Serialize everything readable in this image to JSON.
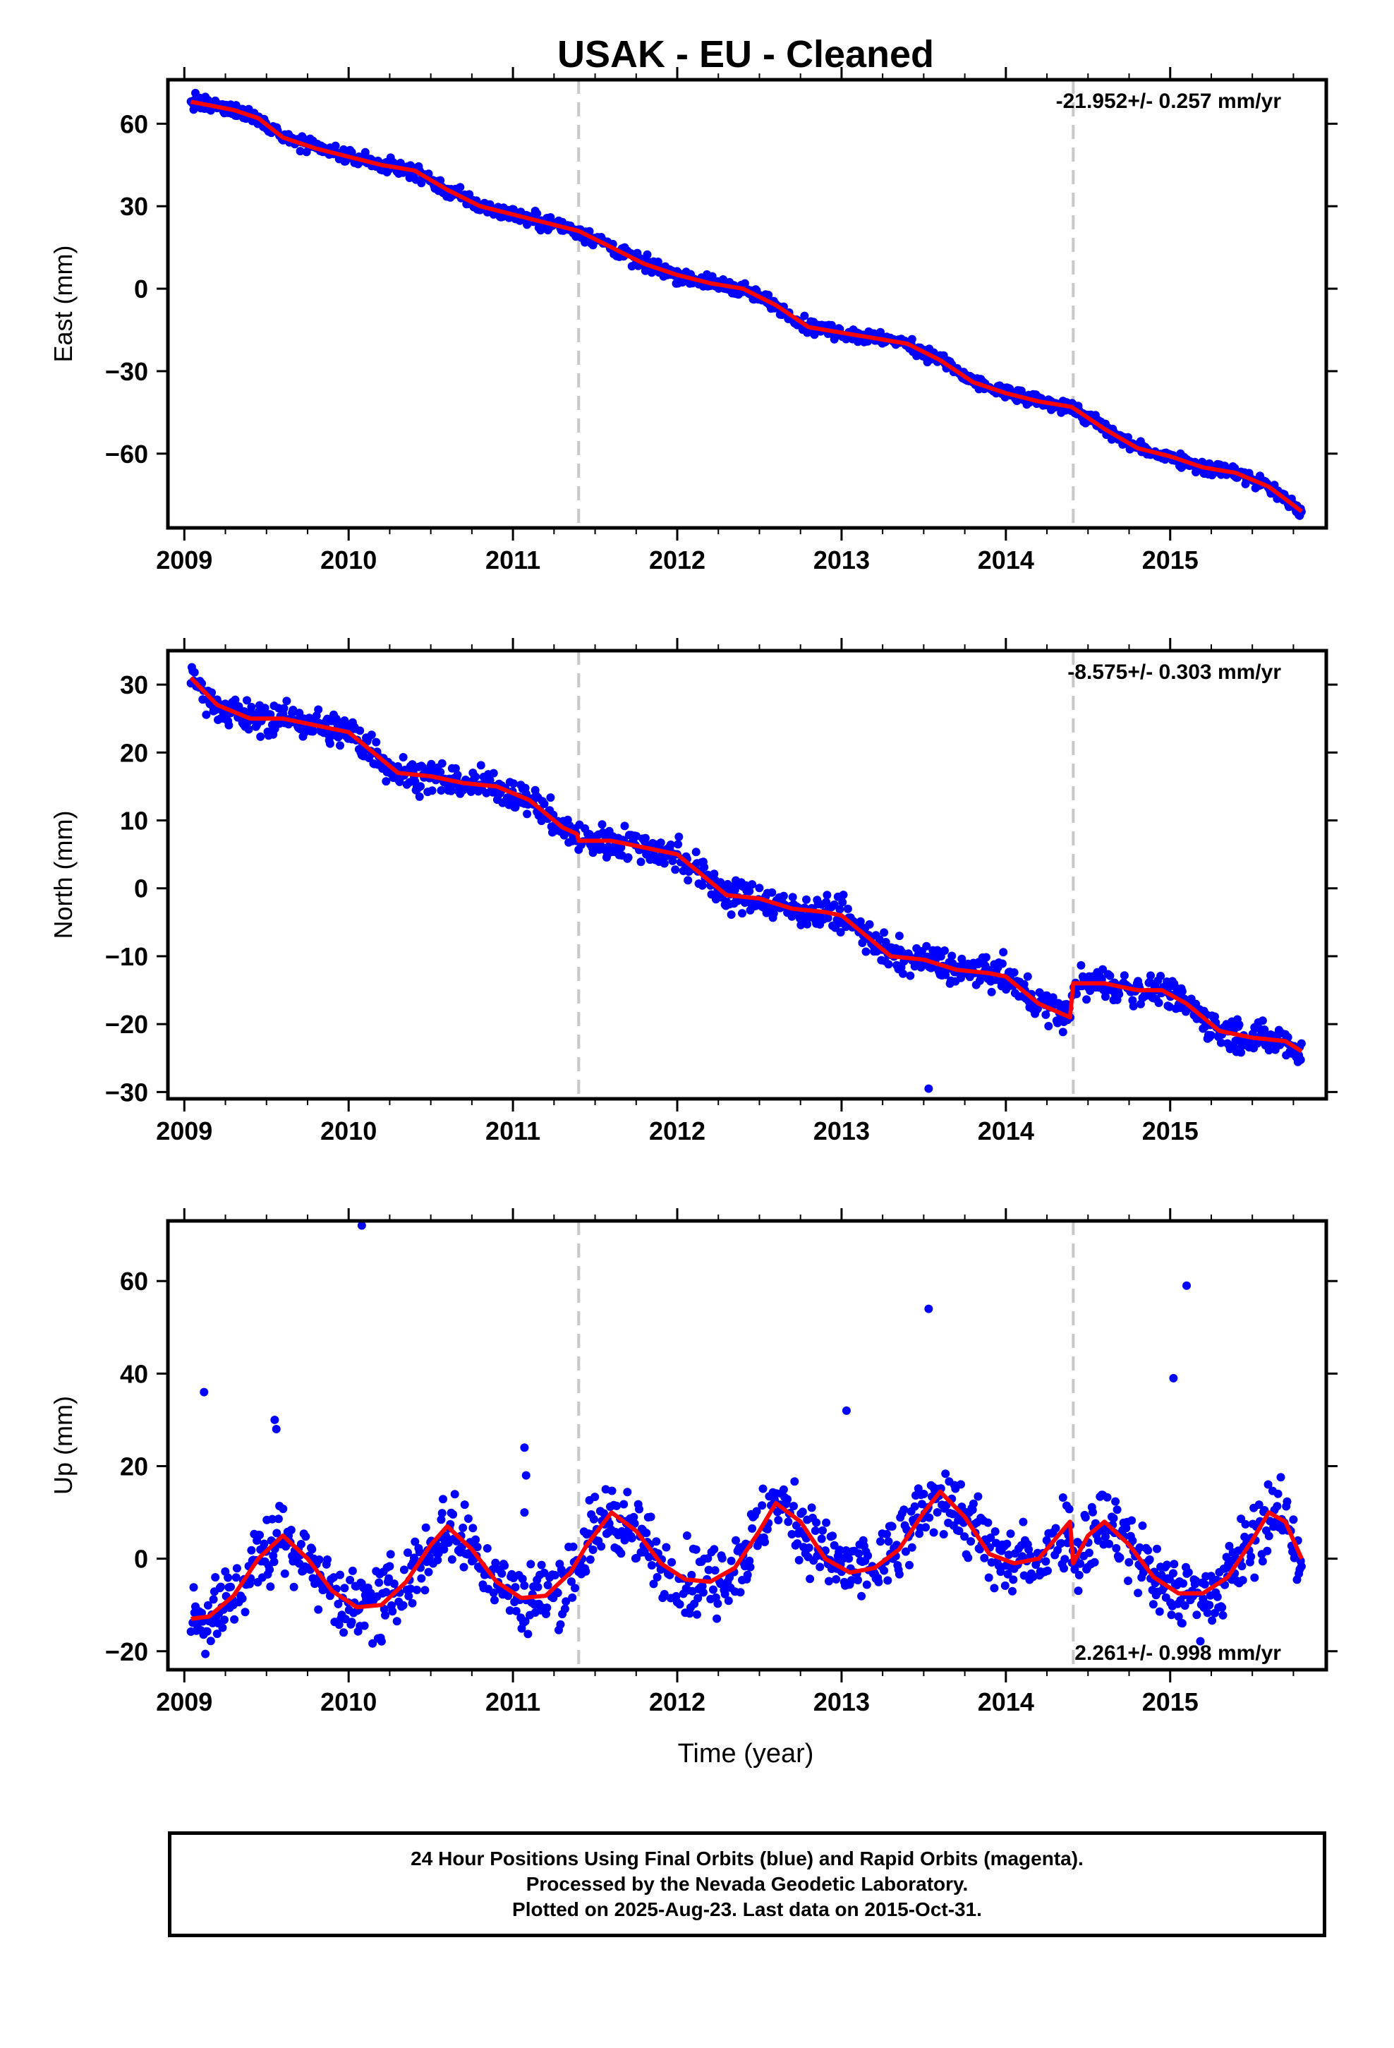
{
  "title": "USAK  - EU - Cleaned",
  "xlabel": "Time (year)",
  "colors": {
    "points": "#0000ff",
    "model": "#ff0000",
    "breaks": "#c8c8c8",
    "axes": "#000000"
  },
  "footer": {
    "line1": "24 Hour Positions Using Final Orbits (blue) and Rapid Orbits (magenta).",
    "line2": "Processed by the Nevada Geodetic Laboratory.",
    "line3": "Plotted on 2025-Aug-23. Last data on 2015-Oct-31."
  },
  "chart_data": [
    {
      "type": "scatter",
      "name": "east",
      "ylabel": "East (mm)",
      "rate_label": "-21.952+/- 0.257 mm/yr",
      "rate_position": "top-right",
      "xlim": [
        2008.9,
        2015.95
      ],
      "ylim": [
        -87,
        76
      ],
      "yticks": [
        -60,
        -30,
        0,
        30,
        60
      ],
      "xticks": [
        2009,
        2010,
        2011,
        2012,
        2013,
        2014,
        2015
      ],
      "grid": false,
      "breaks": [
        2011.4,
        2014.41
      ],
      "model": {
        "x": [
          2009.04,
          2009.3,
          2009.45,
          2009.6,
          2009.8,
          2010.0,
          2010.2,
          2010.4,
          2010.6,
          2010.8,
          2011.0,
          2011.2,
          2011.4,
          2011.6,
          2011.8,
          2012.0,
          2012.2,
          2012.4,
          2012.6,
          2012.8,
          2013.0,
          2013.2,
          2013.4,
          2013.6,
          2013.8,
          2014.0,
          2014.2,
          2014.4,
          2014.6,
          2014.8,
          2015.0,
          2015.2,
          2015.4,
          2015.6,
          2015.8
        ],
        "y": [
          68,
          65,
          62,
          55,
          51,
          48,
          45,
          43,
          36,
          30,
          27,
          24,
          21,
          15,
          9,
          5,
          2,
          0,
          -6,
          -14,
          -16,
          -18,
          -20,
          -26,
          -34,
          -38,
          -41,
          -43,
          -51,
          -58,
          -61,
          -65,
          -67,
          -72,
          -81
        ]
      }
    },
    {
      "type": "scatter",
      "name": "north",
      "ylabel": "North (mm)",
      "rate_label": "-8.575+/- 0.303 mm/yr",
      "rate_position": "top-right",
      "xlim": [
        2008.9,
        2015.95
      ],
      "ylim": [
        -31,
        35
      ],
      "yticks": [
        -30,
        -20,
        -10,
        0,
        10,
        20,
        30
      ],
      "xticks": [
        2009,
        2010,
        2011,
        2012,
        2013,
        2014,
        2015
      ],
      "grid": false,
      "breaks": [
        2011.4,
        2014.41
      ],
      "model": {
        "x": [
          2009.04,
          2009.2,
          2009.4,
          2009.6,
          2009.8,
          2010.0,
          2010.1,
          2010.3,
          2010.5,
          2010.7,
          2010.9,
          2011.1,
          2011.3,
          2011.39,
          2011.4,
          2011.6,
          2011.8,
          2012.0,
          2012.1,
          2012.3,
          2012.5,
          2012.7,
          2012.9,
          2013.0,
          2013.1,
          2013.3,
          2013.5,
          2013.7,
          2013.9,
          2014.0,
          2014.2,
          2014.39,
          2014.41,
          2014.6,
          2014.8,
          2014.95,
          2015.1,
          2015.3,
          2015.5,
          2015.7,
          2015.8
        ],
        "y": [
          31,
          27,
          25,
          25,
          24,
          23,
          21,
          17,
          16.5,
          15.5,
          15,
          13,
          9,
          8,
          7,
          7,
          6,
          5,
          3,
          -1,
          -1.5,
          -3,
          -3.5,
          -4,
          -6,
          -10,
          -10.5,
          -12,
          -12.5,
          -13,
          -17,
          -19,
          -14,
          -14,
          -15,
          -15,
          -17,
          -21,
          -22,
          -22.5,
          -24
        ]
      }
    },
    {
      "type": "scatter",
      "name": "up",
      "ylabel": "Up (mm)",
      "rate_label": "2.261+/- 0.998 mm/yr",
      "rate_position": "bottom-right",
      "xlim": [
        2008.9,
        2015.95
      ],
      "ylim": [
        -24,
        73
      ],
      "yticks": [
        -20,
        0,
        20,
        40,
        60
      ],
      "xticks": [
        2009,
        2010,
        2011,
        2012,
        2013,
        2014,
        2015
      ],
      "grid": false,
      "breaks": [
        2011.4,
        2014.41
      ],
      "outliers": {
        "x": [
          2009.12,
          2009.55,
          2009.56,
          2010.08,
          2011.07,
          2011.08,
          2011.07,
          2013.03,
          2013.53,
          2015.02,
          2015.1
        ],
        "y": [
          36,
          30,
          28,
          72,
          24,
          18,
          10,
          32,
          54,
          39,
          59
        ]
      },
      "model": {
        "x": [
          2009.04,
          2009.15,
          2009.3,
          2009.45,
          2009.6,
          2009.75,
          2009.9,
          2010.05,
          2010.2,
          2010.35,
          2010.5,
          2010.6,
          2010.75,
          2010.9,
          2011.05,
          2011.2,
          2011.35,
          2011.45,
          2011.6,
          2011.75,
          2011.9,
          2012.05,
          2012.2,
          2012.35,
          2012.5,
          2012.6,
          2012.75,
          2012.9,
          2013.05,
          2013.2,
          2013.35,
          2013.5,
          2013.6,
          2013.75,
          2013.9,
          2014.05,
          2014.2,
          2014.39,
          2014.41,
          2014.5,
          2014.6,
          2014.75,
          2014.9,
          2015.05,
          2015.2,
          2015.35,
          2015.5,
          2015.6,
          2015.7,
          2015.8
        ],
        "y": [
          -13,
          -12.5,
          -8,
          0,
          5,
          0,
          -7,
          -10.5,
          -10,
          -5,
          3,
          7,
          2,
          -5,
          -8.5,
          -8,
          -3,
          3,
          10,
          6,
          -1,
          -4.5,
          -5,
          -2,
          6,
          12,
          8,
          0,
          -3,
          -2,
          2,
          10,
          14.5,
          9,
          1,
          -1,
          0,
          8,
          -1,
          5,
          8,
          3,
          -4,
          -7.5,
          -7.5,
          -4,
          4,
          10,
          8,
          0
        ]
      }
    }
  ]
}
